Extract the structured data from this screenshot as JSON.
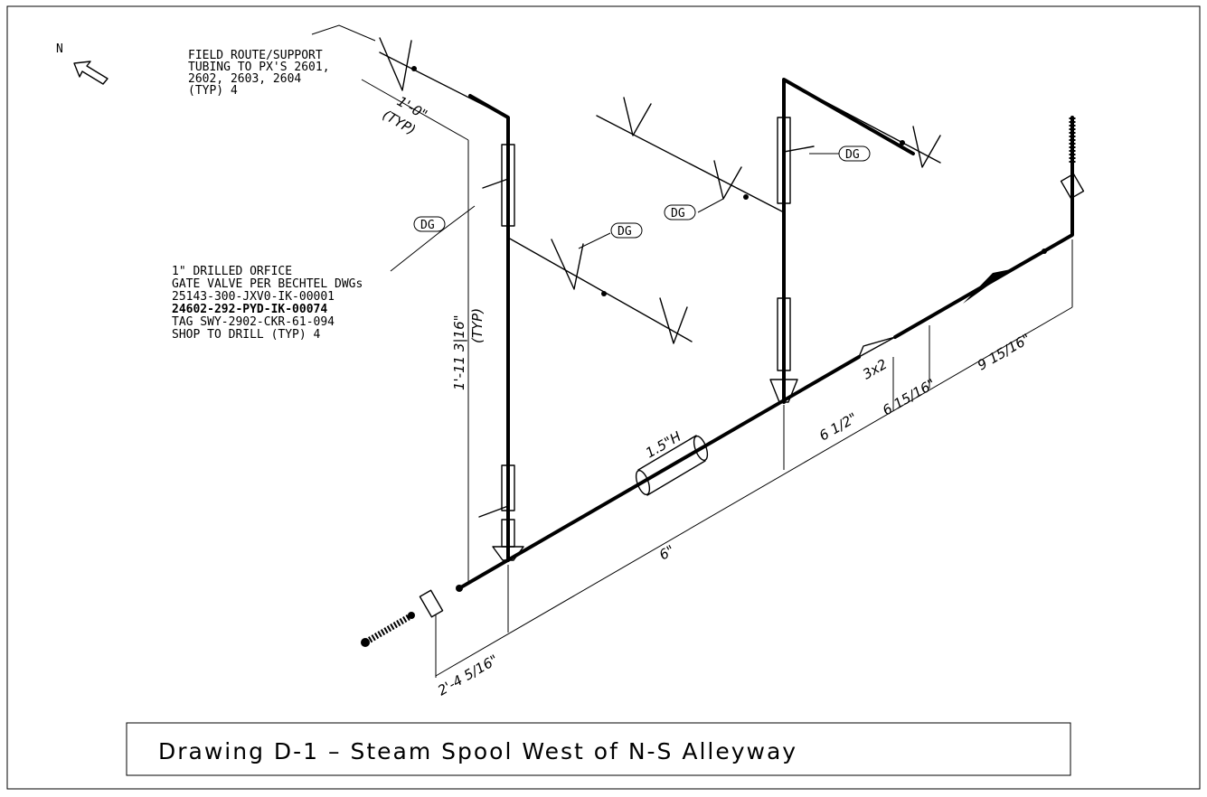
{
  "north_label": "N",
  "notes": {
    "field_route": [
      "FIELD ROUTE/SUPPORT",
      "TUBING TO PX'S 2601,",
      "2602, 2603, 2604",
      "(TYP) 4"
    ],
    "orifice": [
      "1\" DRILLED ORFICE",
      "GATE VALVE PER BECHTEL DWGs",
      "25143-300-JXV0-IK-00001",
      "24602-292-PYD-IK-00074",
      "TAG SWY-2902-CKR-61-094",
      "SHOP TO DRILL (TYP) 4"
    ]
  },
  "tags": [
    "DG",
    "DG",
    "DG",
    "DG"
  ],
  "dimensions": {
    "branch_len": "1'-0\"",
    "branch_typ": "(TYP)",
    "riser_height": "1'-11 3|16\"",
    "riser_typ": "(TYP)",
    "base": "2'-4 5/16\"",
    "run1": "6\"",
    "run2": "6 1/2\"",
    "run3": "6 15/16\"",
    "run4": "9 15/16\"",
    "reducer": "3x2",
    "heater": "1.5\"H"
  },
  "title": "Drawing D-1 – Steam Spool West of N-S Alleyway"
}
